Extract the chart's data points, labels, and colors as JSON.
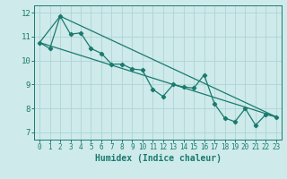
{
  "xlabel": "Humidex (Indice chaleur)",
  "bg_color": "#ceeaea",
  "grid_color": "#afd4d4",
  "line_color": "#1a7a6e",
  "spine_color": "#1a7a6e",
  "xlim": [
    -0.5,
    23.5
  ],
  "ylim": [
    6.7,
    12.3
  ],
  "xticks": [
    0,
    1,
    2,
    3,
    4,
    5,
    6,
    7,
    8,
    9,
    10,
    11,
    12,
    13,
    14,
    15,
    16,
    17,
    18,
    19,
    20,
    21,
    22,
    23
  ],
  "yticks": [
    7,
    8,
    9,
    10,
    11,
    12
  ],
  "line1_x": [
    0,
    1,
    2,
    3,
    4,
    5,
    6,
    7,
    8,
    9,
    10,
    11,
    12,
    13,
    14,
    15,
    16,
    17,
    18,
    19,
    20,
    21,
    22,
    23
  ],
  "line1_y": [
    10.75,
    10.5,
    11.85,
    11.1,
    11.15,
    10.5,
    10.3,
    9.85,
    9.85,
    9.65,
    9.6,
    8.8,
    8.5,
    9.0,
    8.9,
    8.85,
    9.4,
    8.2,
    7.6,
    7.45,
    8.0,
    7.3,
    7.75,
    7.65
  ],
  "line2_x": [
    0,
    23
  ],
  "line2_y": [
    10.75,
    7.65
  ],
  "line3_x": [
    0,
    2,
    23
  ],
  "line3_y": [
    10.75,
    11.85,
    7.65
  ],
  "xlabel_fontsize": 7,
  "tick_fontsize": 5.5,
  "ytick_fontsize": 6.5,
  "linewidth": 0.9,
  "markersize": 2.2
}
